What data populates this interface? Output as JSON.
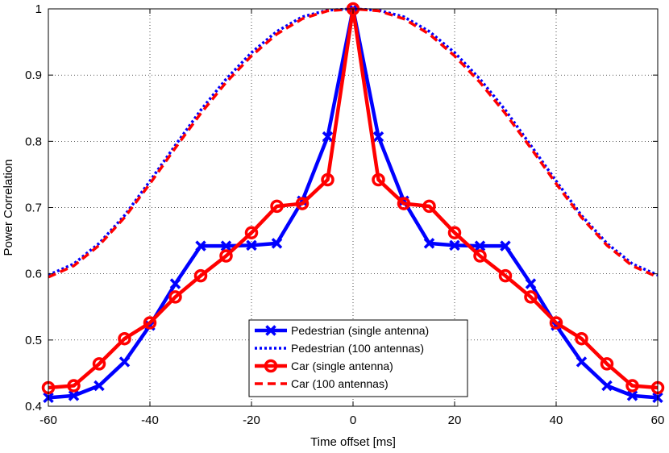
{
  "chart_data": {
    "type": "line",
    "xlabel": "Time offset [ms]",
    "ylabel": "Power Correlation",
    "xlim": [
      -60,
      60
    ],
    "ylim": [
      0.4,
      1.0
    ],
    "xticks": [
      -60,
      -40,
      -20,
      0,
      20,
      40,
      60
    ],
    "xtick_labels": [
      "-60",
      "-40",
      "-20",
      "0",
      "20",
      "40",
      "60"
    ],
    "yticks": [
      0.4,
      0.5,
      0.6,
      0.7,
      0.8,
      0.9,
      1.0
    ],
    "ytick_labels": [
      "0.4",
      "0.5",
      "0.6",
      "0.7",
      "0.8",
      "0.9",
      "1"
    ],
    "grid": true,
    "grid_style": "dotted",
    "legend_position": "bottom-center",
    "series": [
      {
        "name": "Pedestrian (single antenna)",
        "color": "#0000ff",
        "style": "solid",
        "marker": "x",
        "x": [
          -60,
          -55,
          -50,
          -45,
          -40,
          -35,
          -30,
          -25,
          -20,
          -15,
          -10,
          -5,
          0,
          5,
          10,
          15,
          20,
          25,
          30,
          35,
          40,
          45,
          50,
          55,
          60
        ],
        "values": [
          0.413,
          0.416,
          0.431,
          0.467,
          0.522,
          0.585,
          0.642,
          0.642,
          0.643,
          0.646,
          0.71,
          0.807,
          1.0,
          0.807,
          0.71,
          0.646,
          0.643,
          0.642,
          0.642,
          0.585,
          0.522,
          0.467,
          0.431,
          0.416,
          0.413
        ]
      },
      {
        "name": "Pedestrian (100 antennas)",
        "color": "#0000ff",
        "style": "dotted",
        "marker": "none",
        "x": [
          -60,
          -55,
          -50,
          -45,
          -40,
          -35,
          -30,
          -25,
          -20,
          -15,
          -10,
          -5,
          0,
          5,
          10,
          15,
          20,
          25,
          30,
          35,
          40,
          45,
          50,
          55,
          60
        ],
        "values": [
          0.598,
          0.615,
          0.646,
          0.688,
          0.74,
          0.794,
          0.847,
          0.894,
          0.934,
          0.966,
          0.988,
          0.998,
          1.0,
          0.998,
          0.988,
          0.966,
          0.934,
          0.894,
          0.847,
          0.794,
          0.74,
          0.688,
          0.646,
          0.615,
          0.598
        ]
      },
      {
        "name": "Car (single antenna)",
        "color": "#ff0000",
        "style": "solid",
        "marker": "o",
        "x": [
          -60,
          -55,
          -50,
          -45,
          -40,
          -35,
          -30,
          -25,
          -20,
          -15,
          -10,
          -5,
          0,
          5,
          10,
          15,
          20,
          25,
          30,
          35,
          40,
          45,
          50,
          55,
          60
        ],
        "values": [
          0.428,
          0.431,
          0.464,
          0.502,
          0.526,
          0.565,
          0.597,
          0.627,
          0.662,
          0.702,
          0.706,
          0.742,
          1.0,
          0.742,
          0.706,
          0.702,
          0.662,
          0.627,
          0.597,
          0.565,
          0.526,
          0.502,
          0.464,
          0.431,
          0.428
        ]
      },
      {
        "name": "Car (100 antennas)",
        "color": "#ff0000",
        "style": "dashed",
        "marker": "none",
        "x": [
          -60,
          -55,
          -50,
          -45,
          -40,
          -35,
          -30,
          -25,
          -20,
          -15,
          -10,
          -5,
          0,
          5,
          10,
          15,
          20,
          25,
          30,
          35,
          40,
          45,
          50,
          55,
          60
        ],
        "values": [
          0.595,
          0.612,
          0.643,
          0.685,
          0.736,
          0.79,
          0.842,
          0.889,
          0.929,
          0.962,
          0.985,
          0.997,
          1.0,
          0.997,
          0.985,
          0.962,
          0.929,
          0.889,
          0.842,
          0.79,
          0.736,
          0.685,
          0.643,
          0.612,
          0.595
        ]
      }
    ]
  }
}
